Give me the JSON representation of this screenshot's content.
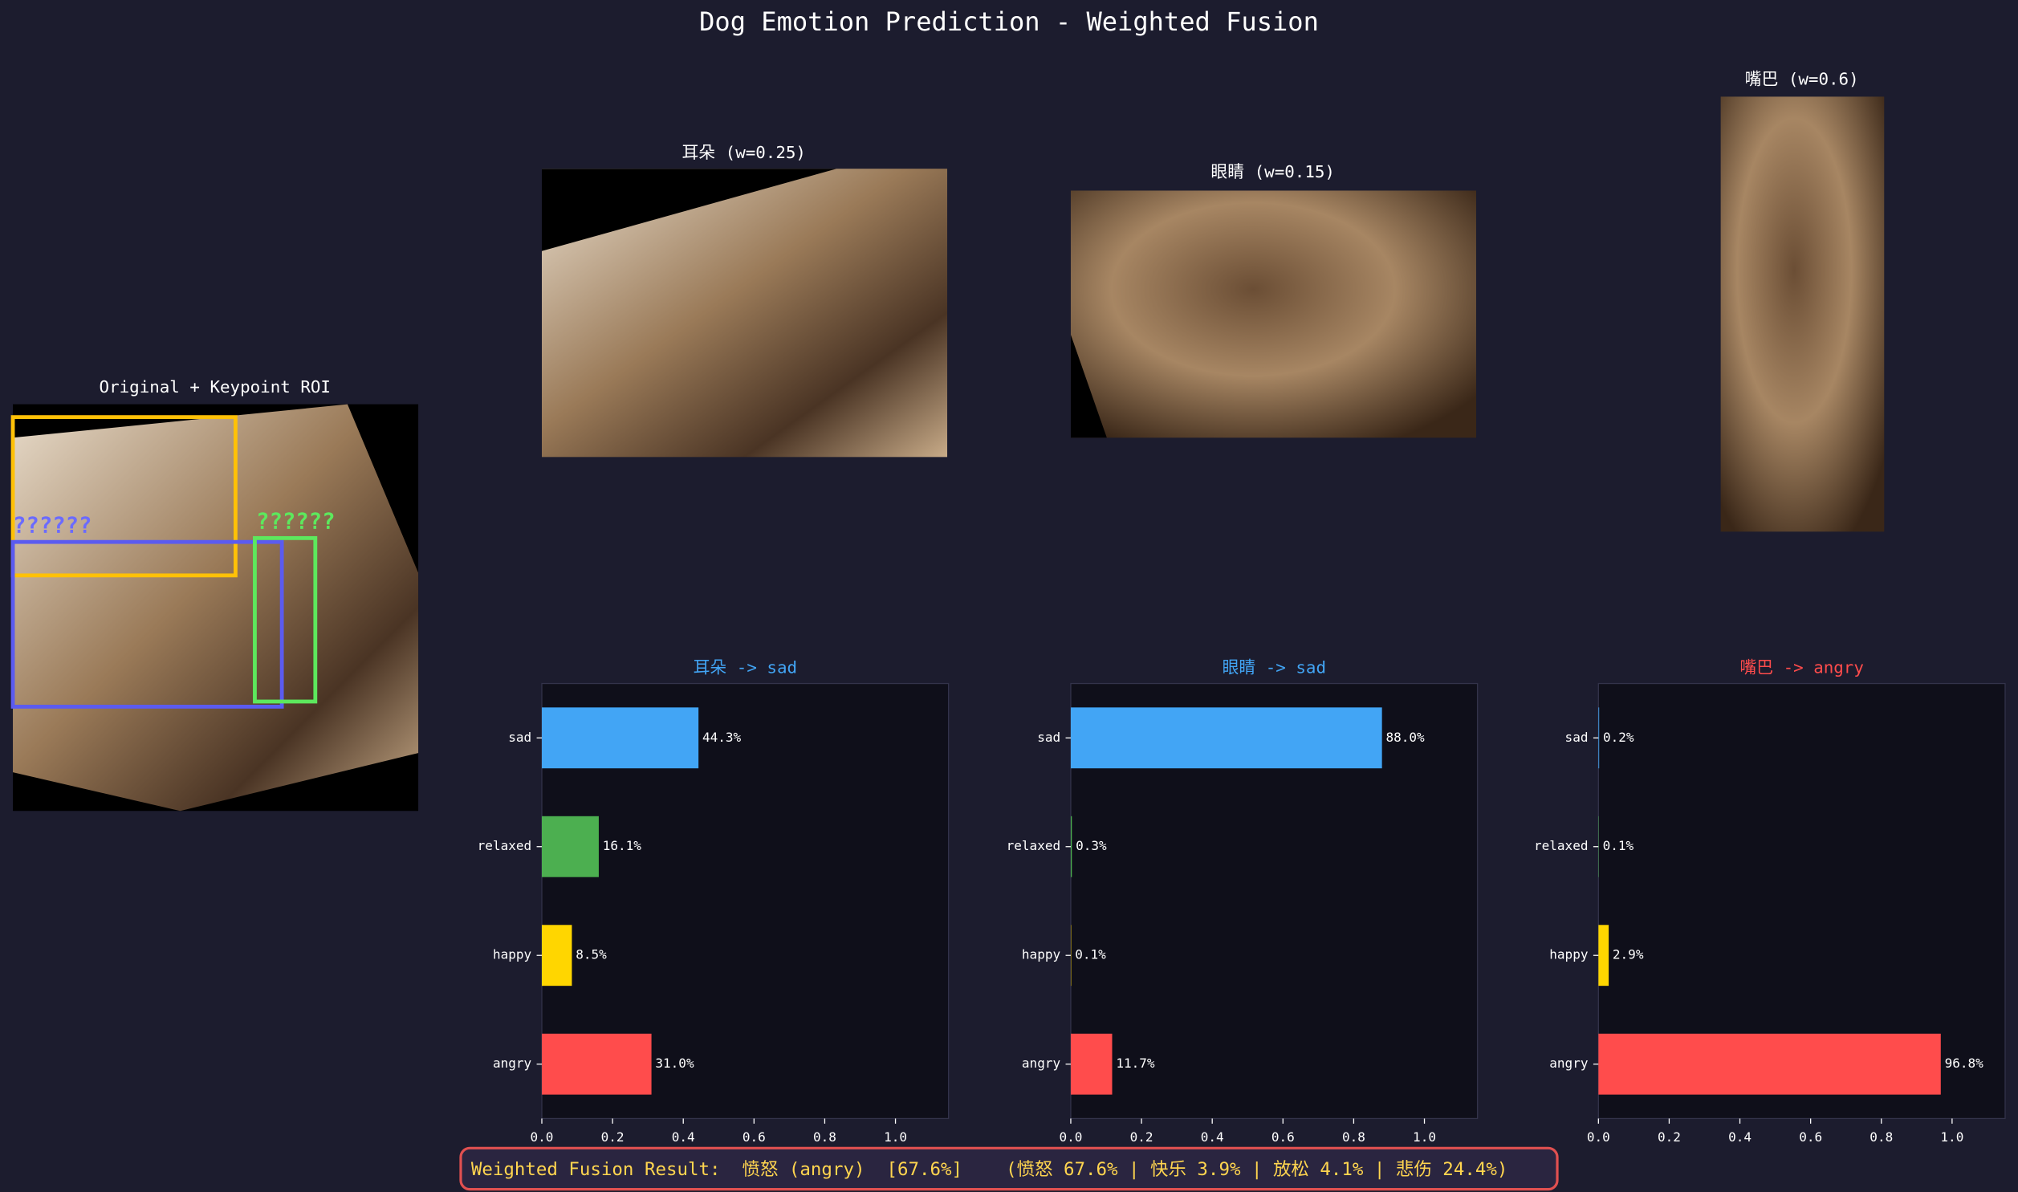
{
  "title": "Dog Emotion Prediction - Weighted Fusion",
  "original": {
    "title": "Original + Keypoint ROI",
    "roi_labels": [
      "??????",
      "??????"
    ]
  },
  "crops": [
    {
      "title": "耳朵 (w=0.25)"
    },
    {
      "title": "眼睛 (w=0.15)"
    },
    {
      "title": "嘴巴 (w=0.6)"
    }
  ],
  "chart_data": [
    {
      "type": "bar",
      "orientation": "horizontal",
      "title": "耳朵 -> sad",
      "title_color": "#42a5f5",
      "categories": [
        "sad",
        "relaxed",
        "happy",
        "angry"
      ],
      "values": [
        0.443,
        0.161,
        0.085,
        0.31
      ],
      "value_labels": [
        "44.3%",
        "16.1%",
        "8.5%",
        "31.0%"
      ],
      "colors": [
        "#42a5f5",
        "#4caf50",
        "#ffd600",
        "#ff4c4c"
      ],
      "xlim": [
        0,
        1.15
      ],
      "xticks": [
        {
          "value": 0,
          "label": "0.0"
        },
        0.2,
        0.4,
        0.6,
        0.8,
        {
          "value": 1,
          "label": "1.0"
        }
      ]
    },
    {
      "type": "bar",
      "orientation": "horizontal",
      "title": "眼睛 -> sad",
      "title_color": "#42a5f5",
      "categories": [
        "sad",
        "relaxed",
        "happy",
        "angry"
      ],
      "values": [
        0.88,
        0.003,
        0.001,
        0.117
      ],
      "value_labels": [
        "88.0%",
        "0.3%",
        "0.1%",
        "11.7%"
      ],
      "colors": [
        "#42a5f5",
        "#4caf50",
        "#ffd600",
        "#ff4c4c"
      ],
      "xlim": [
        0,
        1.15
      ],
      "xticks": [
        {
          "value": 0,
          "label": "0.0"
        },
        0.2,
        0.4,
        0.6,
        0.8,
        {
          "value": 1,
          "label": "1.0"
        }
      ]
    },
    {
      "type": "bar",
      "orientation": "horizontal",
      "title": "嘴巴 -> angry",
      "title_color": "#ff4c4c",
      "categories": [
        "sad",
        "relaxed",
        "happy",
        "angry"
      ],
      "values": [
        0.002,
        0.001,
        0.029,
        0.968
      ],
      "value_labels": [
        "0.2%",
        "0.1%",
        "2.9%",
        "96.8%"
      ],
      "colors": [
        "#42a5f5",
        "#4caf50",
        "#ffd600",
        "#ff4c4c"
      ],
      "xlim": [
        0,
        1.15
      ],
      "xticks": [
        {
          "value": 0,
          "label": "0.0"
        },
        0.2,
        0.4,
        0.6,
        0.8,
        {
          "value": 1,
          "label": "1.0"
        }
      ]
    }
  ],
  "fusion_result": "Weighted Fusion Result:  愤怒 (angry)  [67.6%]    (愤怒 67.6% | 快乐 3.9% | 放松 4.1% | 悲伤 24.4%)"
}
